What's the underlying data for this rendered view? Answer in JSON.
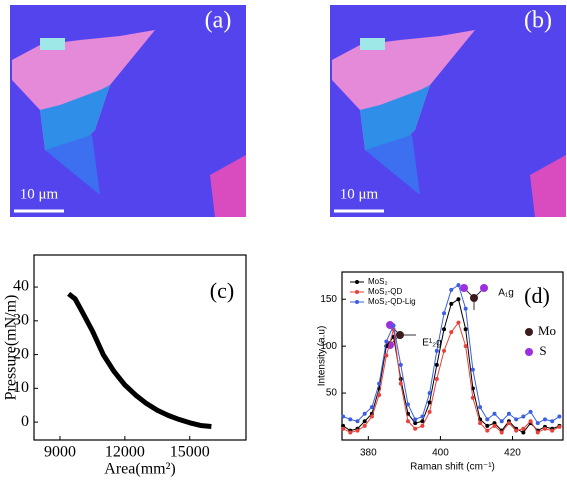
{
  "images": [
    {
      "label": "(a)",
      "scale_bar": "10 μm"
    },
    {
      "label": "(b)",
      "scale_bar": "10 μm"
    }
  ],
  "chart_data": [
    {
      "type": "line",
      "annotations": [
        "(c)"
      ],
      "x_label": "Area(mm²)",
      "y_label": "Pressure(mN/m)",
      "x": [
        9400,
        9700,
        10000,
        10500,
        11000,
        11500,
        12000,
        12500,
        13000,
        13500,
        14000,
        14500,
        15000,
        15500,
        16000
      ],
      "series": [
        {
          "color": "#000000",
          "values": [
            38,
            36.5,
            33,
            27,
            20,
            15,
            11,
            8,
            5.5,
            3.5,
            2,
            0.8,
            -0.2,
            -1,
            -1.3
          ]
        }
      ],
      "xlim": [
        7800,
        17600
      ],
      "ylim": [
        -5.3,
        49.5
      ],
      "xticks": [
        9000,
        12000,
        15000
      ],
      "yticks": [
        0,
        10,
        20,
        30,
        40
      ],
      "markers": false
    },
    {
      "type": "line",
      "annotations": [
        "(d)",
        "A₁g",
        "E¹₂g",
        "Mo",
        "S"
      ],
      "x_label": "Raman shift  (cm⁻¹)",
      "y_label": "Intensity (a.u)",
      "x": [
        373,
        375,
        377,
        379,
        381,
        383,
        385,
        387,
        389,
        391,
        393,
        395,
        397,
        399,
        401,
        403,
        405,
        407,
        409,
        411,
        413,
        415,
        417,
        419,
        421,
        423,
        425,
        427,
        429,
        431,
        433
      ],
      "series": [
        {
          "name": "MoS₂",
          "color": "#000000",
          "values": [
            15,
            10,
            12,
            20,
            28,
            55,
            100,
            110,
            65,
            28,
            18,
            20,
            40,
            80,
            118,
            145,
            150,
            118,
            55,
            22,
            15,
            18,
            10,
            20,
            12,
            8,
            18,
            10,
            14,
            12,
            15
          ]
        },
        {
          "name": "MoS₂-QD",
          "color": "#e8413a",
          "values": [
            12,
            8,
            10,
            15,
            25,
            48,
            90,
            118,
            60,
            20,
            12,
            15,
            30,
            65,
            95,
            115,
            125,
            100,
            45,
            18,
            10,
            15,
            8,
            18,
            10,
            12,
            20,
            8,
            12,
            10,
            14
          ]
        },
        {
          "name": "MoS₂-QD-Lig",
          "color": "#3b5fe0",
          "values": [
            25,
            22,
            20,
            28,
            35,
            60,
            105,
            122,
            80,
            38,
            22,
            25,
            50,
            95,
            135,
            160,
            165,
            140,
            75,
            35,
            22,
            28,
            20,
            28,
            22,
            25,
            30,
            18,
            22,
            20,
            25
          ]
        }
      ],
      "xlim": [
        372.7,
        434
      ],
      "ylim": [
        0,
        179
      ],
      "xticks": [
        380,
        400,
        420
      ],
      "yticks": [
        50,
        100,
        150
      ],
      "markers": true,
      "legend": "upper-left"
    }
  ]
}
